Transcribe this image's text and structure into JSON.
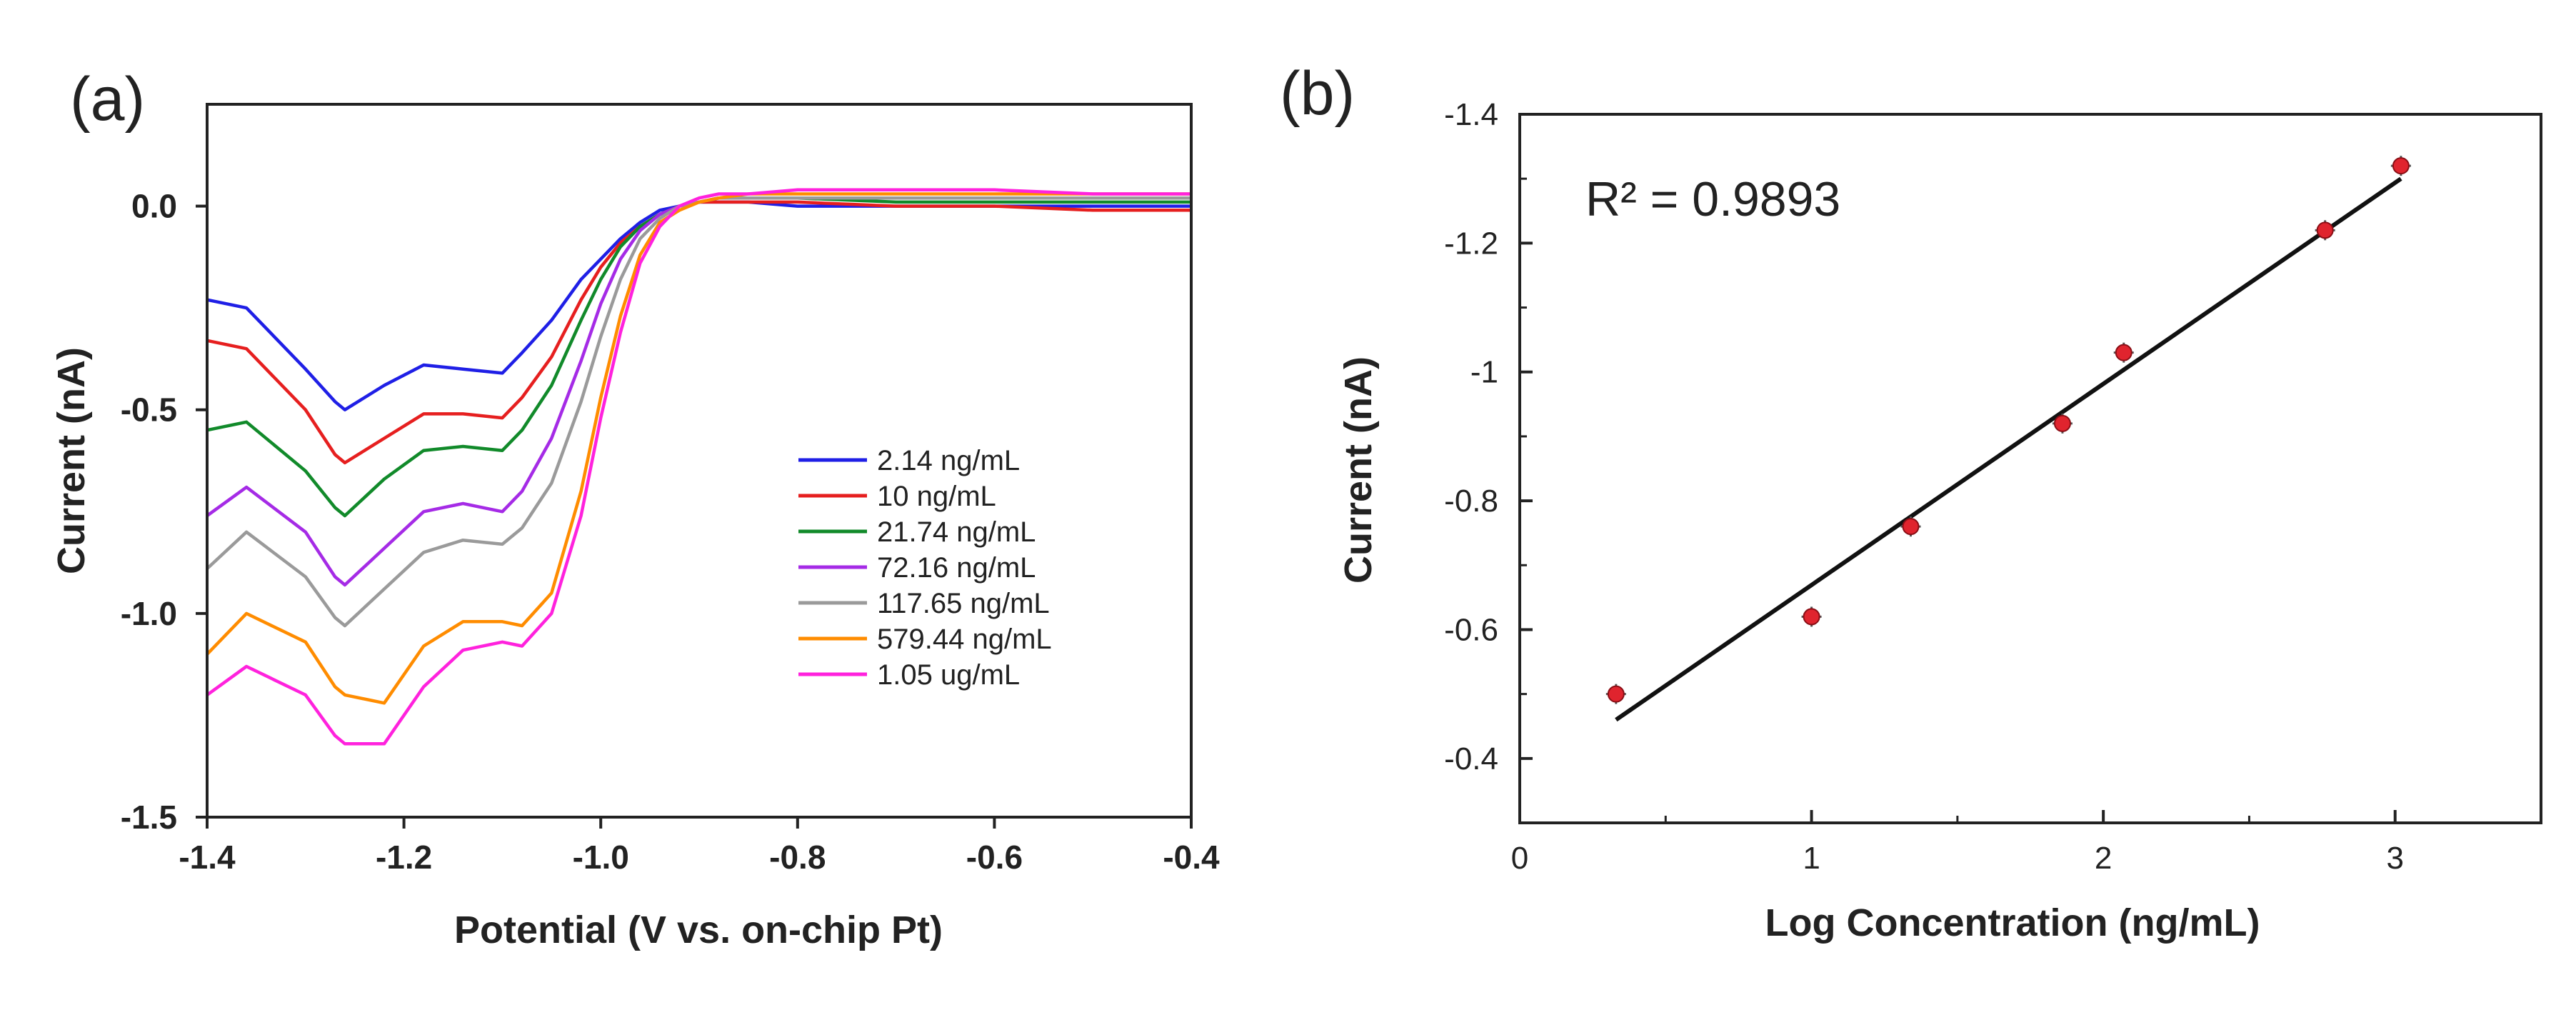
{
  "chart_data": [
    {
      "panel_label": "(a)",
      "type": "line",
      "xlabel": "Potential (V vs. on-chip Pt)",
      "ylabel": "Current (nA)",
      "xlim": [
        -1.4,
        -0.4
      ],
      "ylim": [
        -1.5,
        0.25
      ],
      "xticks": [
        "-1.4",
        "-1.2",
        "-1.0",
        "-0.8",
        "-0.6",
        "-0.4"
      ],
      "yticks": [
        "0.0",
        "-0.5",
        "-1.0",
        "-1.5"
      ],
      "legend_position": "bottom-right",
      "x": [
        -1.4,
        -1.36,
        -1.3,
        -1.27,
        -1.26,
        -1.22,
        -1.18,
        -1.14,
        -1.1,
        -1.08,
        -1.05,
        -1.02,
        -1.0,
        -0.98,
        -0.96,
        -0.94,
        -0.92,
        -0.9,
        -0.88,
        -0.85,
        -0.8,
        -0.7,
        -0.6,
        -0.5,
        -0.4
      ],
      "series": [
        {
          "name": "2.14 ng/mL",
          "color": "#1f1fe6",
          "values": [
            -0.23,
            -0.25,
            -0.4,
            -0.48,
            -0.5,
            -0.44,
            -0.39,
            -0.4,
            -0.41,
            -0.36,
            -0.28,
            -0.18,
            -0.13,
            -0.08,
            -0.04,
            -0.01,
            0.0,
            0.01,
            0.01,
            0.01,
            0.0,
            0.0,
            0.0,
            0.0,
            0.0
          ]
        },
        {
          "name": "10 ng/mL",
          "color": "#e61f1f",
          "values": [
            -0.33,
            -0.35,
            -0.5,
            -0.61,
            -0.63,
            -0.57,
            -0.51,
            -0.51,
            -0.52,
            -0.47,
            -0.37,
            -0.23,
            -0.15,
            -0.09,
            -0.05,
            -0.02,
            0.0,
            0.01,
            0.01,
            0.01,
            0.01,
            0.0,
            0.0,
            -0.01,
            -0.01
          ]
        },
        {
          "name": "21.74 ng/mL",
          "color": "#118a2a",
          "values": [
            -0.55,
            -0.53,
            -0.65,
            -0.74,
            -0.76,
            -0.67,
            -0.6,
            -0.59,
            -0.6,
            -0.55,
            -0.44,
            -0.28,
            -0.18,
            -0.1,
            -0.05,
            -0.02,
            0.0,
            0.01,
            0.02,
            0.02,
            0.02,
            0.01,
            0.01,
            0.01,
            0.01
          ]
        },
        {
          "name": "72.16 ng/mL",
          "color": "#a52be6",
          "values": [
            -0.76,
            -0.69,
            -0.8,
            -0.91,
            -0.93,
            -0.84,
            -0.75,
            -0.73,
            -0.75,
            -0.7,
            -0.57,
            -0.38,
            -0.24,
            -0.13,
            -0.06,
            -0.02,
            0.0,
            0.01,
            0.02,
            0.02,
            0.02,
            0.02,
            0.02,
            0.02,
            0.02
          ]
        },
        {
          "name": "117.65 ng/mL",
          "color": "#9a9a9a",
          "values": [
            -0.89,
            -0.8,
            -0.91,
            -1.01,
            -1.03,
            -0.94,
            -0.85,
            -0.82,
            -0.83,
            -0.79,
            -0.68,
            -0.48,
            -0.32,
            -0.18,
            -0.08,
            -0.03,
            0.0,
            0.01,
            0.02,
            0.02,
            0.02,
            0.02,
            0.02,
            0.02,
            0.02
          ]
        },
        {
          "name": "579.44 ng/mL",
          "color": "#ff8c00",
          "values": [
            -1.1,
            -1.0,
            -1.07,
            -1.18,
            -1.2,
            -1.22,
            -1.08,
            -1.02,
            -1.02,
            -1.03,
            -0.95,
            -0.7,
            -0.47,
            -0.27,
            -0.12,
            -0.04,
            -0.01,
            0.01,
            0.02,
            0.03,
            0.03,
            0.03,
            0.03,
            0.03,
            0.03
          ]
        },
        {
          "name": "1.05 ug/mL",
          "color": "#ff22dd",
          "values": [
            -1.2,
            -1.13,
            -1.2,
            -1.3,
            -1.32,
            -1.32,
            -1.18,
            -1.09,
            -1.07,
            -1.08,
            -1.0,
            -0.76,
            -0.52,
            -0.31,
            -0.14,
            -0.05,
            0.0,
            0.02,
            0.03,
            0.03,
            0.04,
            0.04,
            0.04,
            0.03,
            0.03
          ]
        }
      ]
    },
    {
      "panel_label": "(b)",
      "type": "scatter",
      "xlabel": "Log Concentration (ng/mL)",
      "ylabel": "Current (nA)",
      "xlim": [
        0,
        3.5
      ],
      "ylim": [
        -0.3,
        -1.4
      ],
      "xticks": [
        "0",
        "1",
        "2",
        "3"
      ],
      "yticks": [
        "-0.4",
        "-0.6",
        "-0.8",
        "-1",
        "-1.2",
        "-1.4"
      ],
      "annotation": "R² = 0.9893",
      "points": {
        "x": [
          0.33,
          1.0,
          1.34,
          1.86,
          2.07,
          2.76,
          3.02
        ],
        "y": [
          -0.5,
          -0.62,
          -0.76,
          -0.92,
          -1.03,
          -1.22,
          -1.32
        ],
        "color": "#e0242e"
      },
      "fit_line": {
        "x": [
          0.33,
          3.02
        ],
        "y": [
          -0.46,
          -1.3
        ],
        "color": "#111111"
      }
    }
  ]
}
